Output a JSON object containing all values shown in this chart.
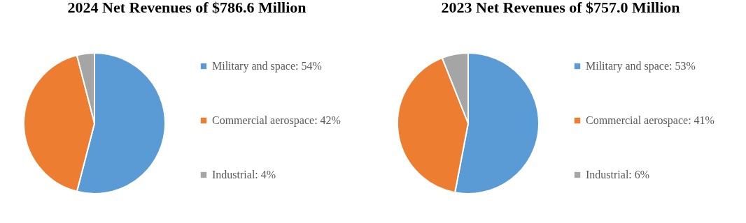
{
  "chart_data": [
    {
      "type": "pie",
      "title": "2024 Net Revenues of $786.6 Million",
      "categories": [
        "Military and space: 54%",
        "Commercial aerospace: 42%",
        "Industrial: 4%"
      ],
      "values": [
        54,
        42,
        4
      ],
      "colors": [
        "#5b9bd5",
        "#ed7d31",
        "#a5a5a5"
      ],
      "legend": "right"
    },
    {
      "type": "pie",
      "title": "2023 Net Revenues of $757.0 Million",
      "categories": [
        "Military and space: 53%",
        "Commercial aerospace: 41%",
        "Industrial: 6%"
      ],
      "values": [
        53,
        41,
        6
      ],
      "colors": [
        "#5b9bd5",
        "#ed7d31",
        "#a5a5a5"
      ],
      "legend": "right"
    }
  ]
}
